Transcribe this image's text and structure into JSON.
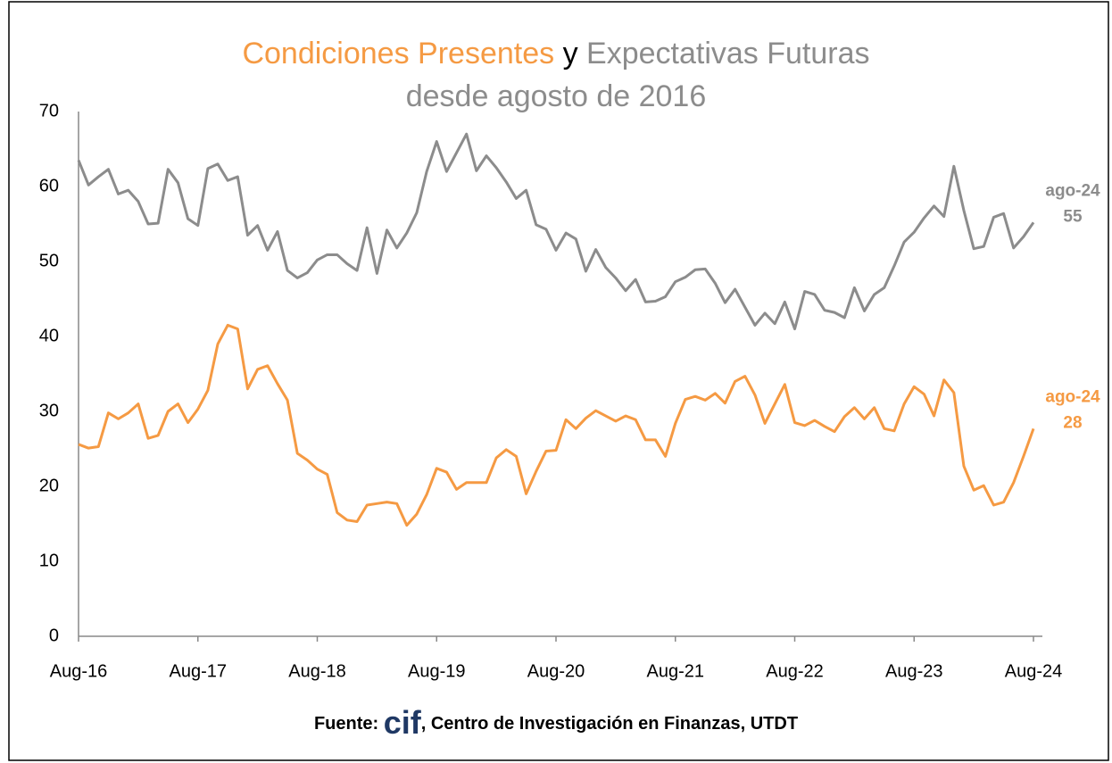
{
  "chart_data": {
    "type": "line",
    "title_connector": "y",
    "subtitle": "desde agosto de 2016",
    "source_prefix": "Fuente:",
    "source_logo": "cif",
    "source_text": ", Centro de Investigación en Finanzas, UTDT",
    "categories": [
      "Aug-16",
      null,
      null,
      null,
      null,
      null,
      null,
      null,
      null,
      null,
      null,
      null,
      "Aug-17",
      null,
      null,
      null,
      null,
      null,
      null,
      null,
      null,
      null,
      null,
      null,
      "Aug-18",
      null,
      null,
      null,
      null,
      null,
      null,
      null,
      null,
      null,
      null,
      null,
      "Aug-19",
      null,
      null,
      null,
      null,
      null,
      null,
      null,
      null,
      null,
      null,
      null,
      "Aug-20",
      null,
      null,
      null,
      null,
      null,
      null,
      null,
      null,
      null,
      null,
      null,
      "Aug-21",
      null,
      null,
      null,
      null,
      null,
      null,
      null,
      null,
      null,
      null,
      null,
      "Aug-22",
      null,
      null,
      null,
      null,
      null,
      null,
      null,
      null,
      null,
      null,
      null,
      "Aug-23",
      null,
      null,
      null,
      null,
      null,
      null,
      null,
      null,
      null,
      null,
      null,
      "Aug-24"
    ],
    "ylim": [
      0,
      70
    ],
    "yticks": [
      0,
      10,
      20,
      30,
      40,
      50,
      60,
      70
    ],
    "grid": false,
    "series": [
      {
        "name": "Condiciones Presentes",
        "color": "#f59a43",
        "end_label": "ago-24",
        "values": [
          25.6,
          25.1,
          25.3,
          29.8,
          29,
          29.8,
          31,
          26.4,
          26.8,
          30,
          31,
          28.5,
          30.3,
          32.8,
          39,
          41.5,
          41,
          33,
          35.6,
          36.1,
          33.7,
          31.5,
          24.4,
          23.5,
          22.3,
          21.6,
          16.5,
          15.5,
          15.3,
          17.5,
          17.7,
          17.9,
          17.7,
          14.8,
          16.3,
          18.9,
          22.4,
          21.9,
          19.6,
          20.5,
          20.5,
          20.5,
          23.8,
          24.9,
          24,
          19,
          22,
          24.7,
          24.8,
          28.9,
          27.7,
          29.1,
          30.1,
          29.4,
          28.7,
          29.4,
          28.9,
          26.2,
          26.2,
          24,
          28.4,
          31.6,
          32,
          31.5,
          32.4,
          31.1,
          34,
          34.7,
          32.2,
          28.4,
          31,
          33.6,
          28.5,
          28.1,
          28.8,
          28,
          27.3,
          29.3,
          30.5,
          29,
          30.5,
          27.7,
          27.4,
          31,
          33.3,
          32.3,
          29.4,
          34.2,
          32.5,
          22.7,
          19.5,
          20.1,
          17.5,
          17.9,
          20.5,
          24,
          27.7
        ],
        "value_labels": [
          null,
          null,
          null,
          null,
          null,
          null,
          null,
          null,
          null,
          null,
          null,
          null,
          null,
          null,
          null,
          null,
          null,
          null,
          null,
          null,
          null,
          null,
          null,
          null,
          null,
          null,
          null,
          null,
          null,
          null,
          null,
          null,
          null,
          null,
          null,
          null,
          null,
          null,
          null,
          null,
          null,
          null,
          null,
          null,
          null,
          null,
          null,
          null,
          null,
          null,
          null,
          null,
          null,
          null,
          null,
          null,
          null,
          null,
          null,
          null,
          null,
          null,
          null,
          null,
          null,
          null,
          null,
          null,
          null,
          null,
          null,
          null,
          null,
          null,
          null,
          null,
          null,
          null,
          null,
          null,
          null,
          null,
          null,
          null,
          null,
          null,
          null,
          null,
          null,
          null,
          null,
          null,
          null,
          null,
          null,
          null,
          "28"
        ]
      },
      {
        "name": "Expectativas Futuras",
        "color": "#8c8c8c",
        "end_label": "ago-24",
        "values": [
          63.5,
          60.2,
          61.3,
          62.3,
          59,
          59.5,
          58,
          55,
          55.1,
          62.3,
          60.5,
          55.7,
          54.8,
          62.4,
          63,
          60.8,
          61.3,
          53.5,
          54.8,
          51.5,
          54,
          48.8,
          47.8,
          48.5,
          50.2,
          50.9,
          50.9,
          49.7,
          48.8,
          54.5,
          48.4,
          54.2,
          51.8,
          53.8,
          56.5,
          62,
          66,
          62,
          64.5,
          67,
          62.1,
          64.1,
          62.5,
          60.6,
          58.4,
          59.5,
          54.9,
          54.3,
          51.5,
          53.8,
          53,
          48.7,
          51.6,
          49.2,
          47.8,
          46.1,
          47.6,
          44.6,
          44.7,
          45.3,
          47.3,
          47.9,
          48.9,
          49,
          47.1,
          44.5,
          46.3,
          43.9,
          41.5,
          43.1,
          41.7,
          44.6,
          41,
          46,
          45.6,
          43.5,
          43.2,
          42.5,
          46.5,
          43.4,
          45.6,
          46.5,
          49.4,
          52.6,
          53.9,
          55.8,
          57.4,
          56,
          62.7,
          56.8,
          51.7,
          52,
          55.9,
          56.4,
          51.8,
          53.3,
          55.2
        ],
        "value_labels": [
          null,
          null,
          null,
          null,
          null,
          null,
          null,
          null,
          null,
          null,
          null,
          null,
          null,
          null,
          null,
          null,
          null,
          null,
          null,
          null,
          null,
          null,
          null,
          null,
          null,
          null,
          null,
          null,
          null,
          null,
          null,
          null,
          null,
          null,
          null,
          null,
          null,
          null,
          null,
          null,
          null,
          null,
          null,
          null,
          null,
          null,
          null,
          null,
          null,
          null,
          null,
          null,
          null,
          null,
          null,
          null,
          null,
          null,
          null,
          null,
          null,
          null,
          null,
          null,
          null,
          null,
          null,
          null,
          null,
          null,
          null,
          null,
          null,
          null,
          null,
          null,
          null,
          null,
          null,
          null,
          null,
          null,
          null,
          null,
          null,
          null,
          null,
          null,
          null,
          null,
          null,
          null,
          null,
          null,
          null,
          null,
          "55"
        ]
      }
    ]
  }
}
